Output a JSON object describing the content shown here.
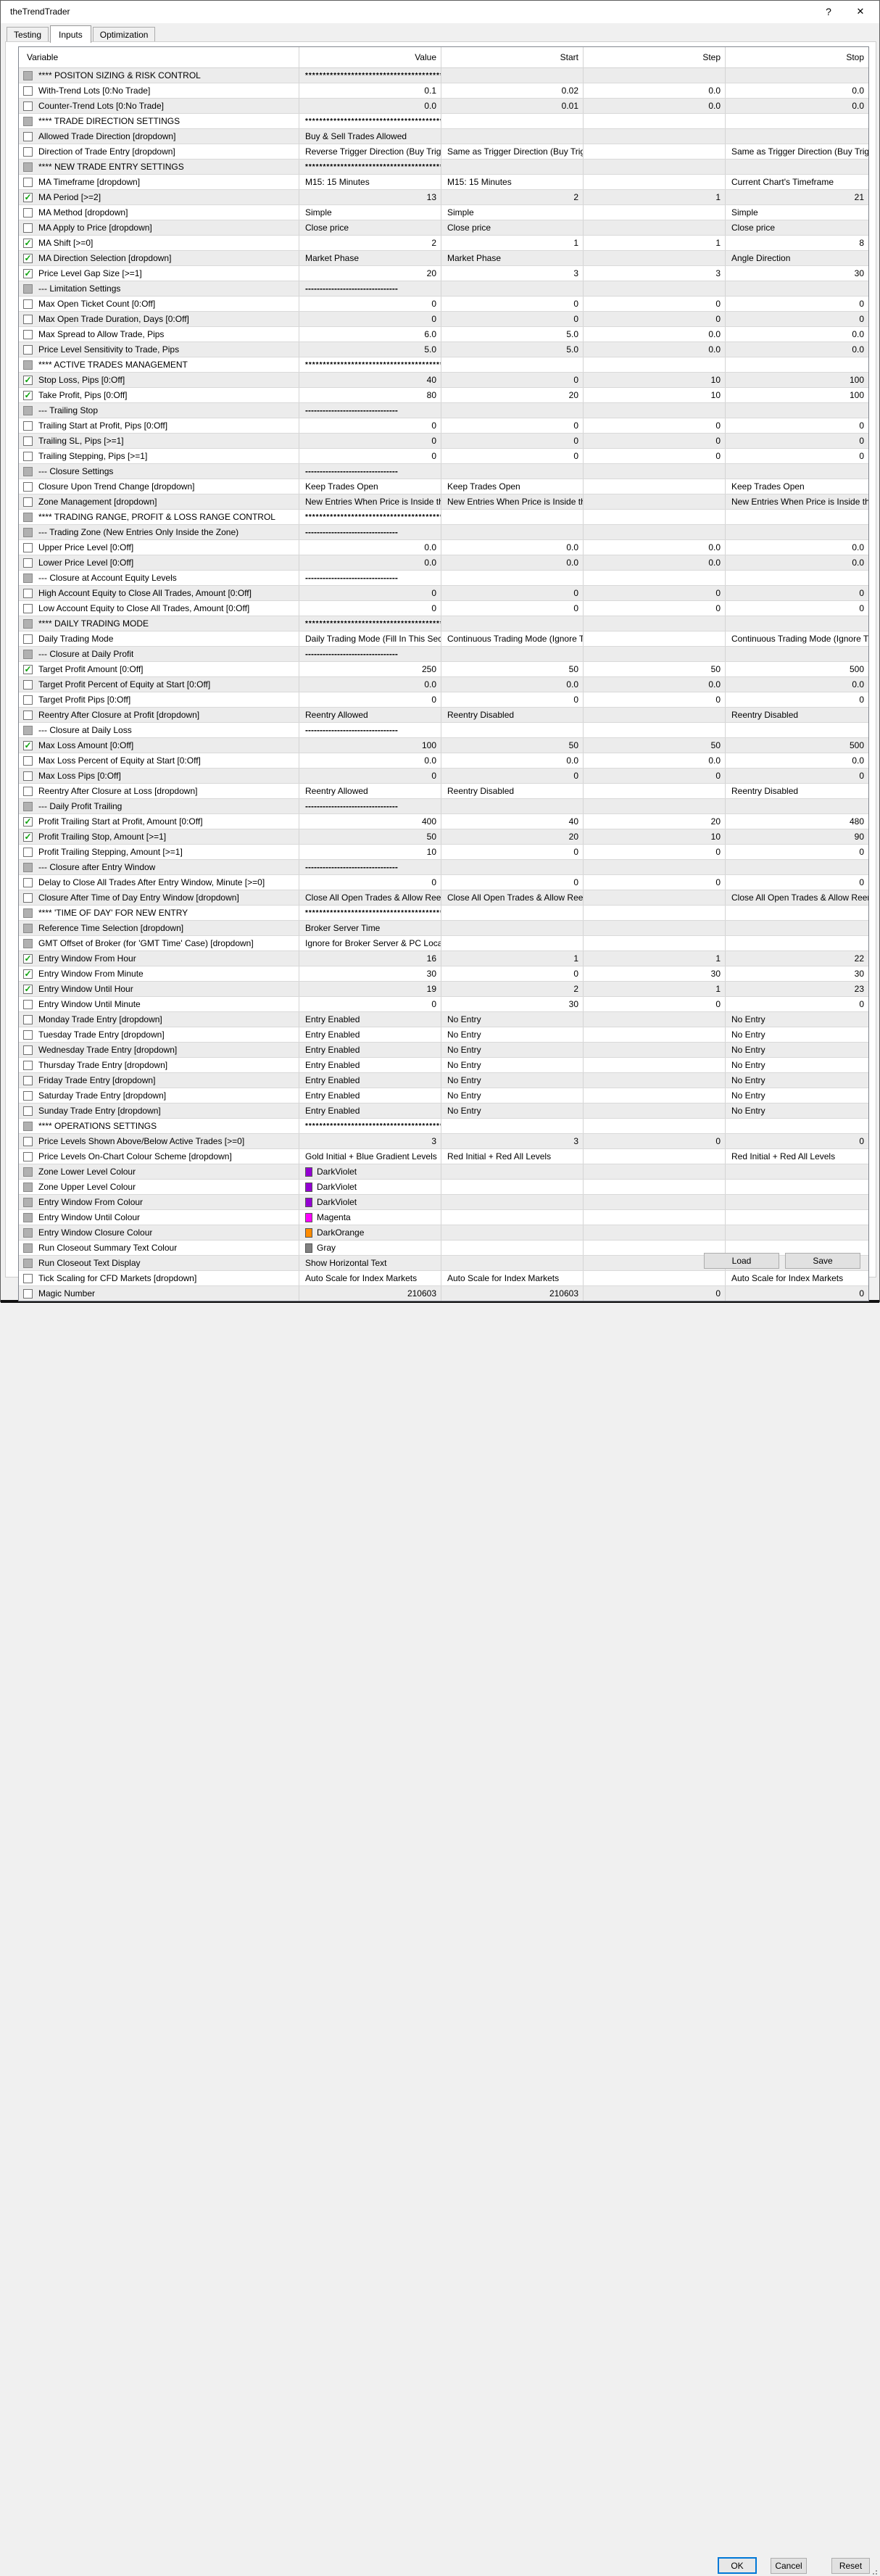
{
  "window": {
    "title": "theTrendTrader",
    "help_glyph": "?",
    "close_glyph": "✕"
  },
  "tabs": [
    {
      "label": "Testing",
      "active": false
    },
    {
      "label": "Inputs",
      "active": true
    },
    {
      "label": "Optimization",
      "active": false
    }
  ],
  "table": {
    "columns": [
      "Variable",
      "Value",
      "Start",
      "Step",
      "Stop"
    ],
    "rows": [
      {
        "label": "**** POSITON SIZING & RISK CONTROL",
        "check": "na",
        "kind": "section",
        "value": "*****************************************",
        "start": "",
        "step": "",
        "stop": ""
      },
      {
        "label": "With-Trend Lots [0:No Trade]",
        "check": "off",
        "kind": "num",
        "value": "0.1",
        "start": "0.02",
        "step": "0.0",
        "stop": "0.0"
      },
      {
        "label": "Counter-Trend Lots [0:No Trade]",
        "check": "off",
        "kind": "num",
        "value": "0.0",
        "start": "0.01",
        "step": "0.0",
        "stop": "0.0"
      },
      {
        "label": "**** TRADE DIRECTION SETTINGS",
        "check": "na",
        "kind": "section",
        "value": "*****************************************",
        "start": "",
        "step": "",
        "stop": ""
      },
      {
        "label": "Allowed Trade Direction [dropdown]",
        "check": "off",
        "kind": "text",
        "value": "Buy & Sell Trades Allowed",
        "start": "",
        "step": "",
        "stop": ""
      },
      {
        "label": "Direction of Trade Entry [dropdown]",
        "check": "off",
        "kind": "text",
        "value": "Reverse Trigger Direction (Buy Trigge...",
        "start": "Same as Trigger Direction (Buy Trigg...",
        "step": "",
        "stop": "Same as Trigger Direction (Buy Trigger..."
      },
      {
        "label": "**** NEW TRADE ENTRY SETTINGS",
        "check": "na",
        "kind": "section",
        "value": "*****************************************",
        "start": "",
        "step": "",
        "stop": ""
      },
      {
        "label": "MA Timeframe [dropdown]",
        "check": "off",
        "kind": "text",
        "value": "M15: 15 Minutes",
        "start": "M15: 15 Minutes",
        "step": "",
        "stop": "Current Chart's Timeframe"
      },
      {
        "label": "MA Period [>=2]",
        "check": "on",
        "kind": "num",
        "value": "13",
        "start": "2",
        "step": "1",
        "stop": "21"
      },
      {
        "label": "MA Method [dropdown]",
        "check": "off",
        "kind": "text",
        "value": "Simple",
        "start": "Simple",
        "step": "",
        "stop": "Simple"
      },
      {
        "label": "MA Apply to Price [dropdown]",
        "check": "off",
        "kind": "text",
        "value": "Close price",
        "start": "Close price",
        "step": "",
        "stop": "Close price"
      },
      {
        "label": "MA Shift [>=0]",
        "check": "on",
        "kind": "num",
        "value": "2",
        "start": "1",
        "step": "1",
        "stop": "8"
      },
      {
        "label": "MA Direction Selection [dropdown]",
        "check": "on",
        "kind": "text",
        "value": "Market Phase",
        "start": "Market Phase",
        "step": "",
        "stop": "Angle Direction"
      },
      {
        "label": "Price Level Gap Size [>=1]",
        "check": "on",
        "kind": "num",
        "value": "20",
        "start": "3",
        "step": "3",
        "stop": "30"
      },
      {
        "label": "--- Limitation Settings",
        "check": "na",
        "kind": "dash",
        "value": "--------------------------------",
        "start": "",
        "step": "",
        "stop": ""
      },
      {
        "label": "Max Open Ticket Count [0:Off]",
        "check": "off",
        "kind": "num",
        "value": "0",
        "start": "0",
        "step": "0",
        "stop": "0"
      },
      {
        "label": "Max Open Trade Duration, Days [0:Off]",
        "check": "off",
        "kind": "num",
        "value": "0",
        "start": "0",
        "step": "0",
        "stop": "0"
      },
      {
        "label": "Max Spread to Allow Trade, Pips",
        "check": "off",
        "kind": "num",
        "value": "6.0",
        "start": "5.0",
        "step": "0.0",
        "stop": "0.0"
      },
      {
        "label": "Price Level Sensitivity to Trade, Pips",
        "check": "off",
        "kind": "num",
        "value": "5.0",
        "start": "5.0",
        "step": "0.0",
        "stop": "0.0"
      },
      {
        "label": "**** ACTIVE TRADES MANAGEMENT",
        "check": "na",
        "kind": "section",
        "value": "*****************************************",
        "start": "",
        "step": "",
        "stop": ""
      },
      {
        "label": "Stop Loss, Pips [0:Off]",
        "check": "on",
        "kind": "num",
        "value": "40",
        "start": "0",
        "step": "10",
        "stop": "100"
      },
      {
        "label": "Take Profit, Pips [0:Off]",
        "check": "on",
        "kind": "num",
        "value": "80",
        "start": "20",
        "step": "10",
        "stop": "100"
      },
      {
        "label": "--- Trailing Stop",
        "check": "na",
        "kind": "dash",
        "value": "--------------------------------",
        "start": "",
        "step": "",
        "stop": ""
      },
      {
        "label": "Trailing Start at Profit, Pips [0:Off]",
        "check": "off",
        "kind": "num",
        "value": "0",
        "start": "0",
        "step": "0",
        "stop": "0"
      },
      {
        "label": "Trailing SL, Pips [>=1]",
        "check": "off",
        "kind": "num",
        "value": "0",
        "start": "0",
        "step": "0",
        "stop": "0"
      },
      {
        "label": "Trailing Stepping, Pips [>=1]",
        "check": "off",
        "kind": "num",
        "value": "0",
        "start": "0",
        "step": "0",
        "stop": "0"
      },
      {
        "label": "--- Closure Settings",
        "check": "na",
        "kind": "dash",
        "value": "--------------------------------",
        "start": "",
        "step": "",
        "stop": ""
      },
      {
        "label": "Closure Upon Trend Change [dropdown]",
        "check": "off",
        "kind": "text",
        "value": "Keep Trades Open",
        "start": "Keep Trades Open",
        "step": "",
        "stop": "Keep Trades Open"
      },
      {
        "label": "Zone Management [dropdown]",
        "check": "off",
        "kind": "text",
        "value": "New Entries When Price is Inside the ...",
        "start": "New Entries When Price is Inside the ...",
        "step": "",
        "stop": "New Entries When Price is Inside the ..."
      },
      {
        "label": "**** TRADING RANGE, PROFIT & LOSS RANGE CONTROL",
        "check": "na",
        "kind": "section",
        "value": "*****************************************",
        "start": "",
        "step": "",
        "stop": ""
      },
      {
        "label": "--- Trading Zone (New Entries Only Inside the Zone)",
        "check": "na",
        "kind": "dash",
        "value": "--------------------------------",
        "start": "",
        "step": "",
        "stop": ""
      },
      {
        "label": "Upper Price Level [0:Off]",
        "check": "off",
        "kind": "num",
        "value": "0.0",
        "start": "0.0",
        "step": "0.0",
        "stop": "0.0"
      },
      {
        "label": "Lower Price Level [0:Off]",
        "check": "off",
        "kind": "num",
        "value": "0.0",
        "start": "0.0",
        "step": "0.0",
        "stop": "0.0"
      },
      {
        "label": "--- Closure at Account Equity Levels",
        "check": "na",
        "kind": "dash",
        "value": "--------------------------------",
        "start": "",
        "step": "",
        "stop": ""
      },
      {
        "label": "High Account Equity to Close All Trades, Amount [0:Off]",
        "check": "off",
        "kind": "num",
        "value": "0",
        "start": "0",
        "step": "0",
        "stop": "0"
      },
      {
        "label": "Low Account Equity to Close All Trades, Amount [0:Off]",
        "check": "off",
        "kind": "num",
        "value": "0",
        "start": "0",
        "step": "0",
        "stop": "0"
      },
      {
        "label": "**** DAILY TRADING MODE",
        "check": "na",
        "kind": "section",
        "value": "*****************************************",
        "start": "",
        "step": "",
        "stop": ""
      },
      {
        "label": "Daily Trading Mode",
        "check": "off",
        "kind": "text",
        "value": "Daily Trading Mode (Fill In This Sectio...",
        "start": "Continuous Trading Mode (Ignore Thi...",
        "step": "",
        "stop": "Continuous Trading Mode (Ignore This..."
      },
      {
        "label": "--- Closure at Daily Profit",
        "check": "na",
        "kind": "dash",
        "value": "--------------------------------",
        "start": "",
        "step": "",
        "stop": ""
      },
      {
        "label": "Target Profit Amount [0:Off]",
        "check": "on",
        "kind": "num",
        "value": "250",
        "start": "50",
        "step": "50",
        "stop": "500"
      },
      {
        "label": "Target Profit Percent of Equity at Start [0:Off]",
        "check": "off",
        "kind": "num",
        "value": "0.0",
        "start": "0.0",
        "step": "0.0",
        "stop": "0.0"
      },
      {
        "label": "Target Profit Pips [0:Off]",
        "check": "off",
        "kind": "num",
        "value": "0",
        "start": "0",
        "step": "0",
        "stop": "0"
      },
      {
        "label": "Reentry After Closure at Profit [dropdown]",
        "check": "off",
        "kind": "text",
        "value": "Reentry Allowed",
        "start": "Reentry Disabled",
        "step": "",
        "stop": "Reentry Disabled"
      },
      {
        "label": "--- Closure at Daily Loss",
        "check": "na",
        "kind": "dash",
        "value": "--------------------------------",
        "start": "",
        "step": "",
        "stop": ""
      },
      {
        "label": "Max Loss Amount [0:Off]",
        "check": "on",
        "kind": "num",
        "value": "100",
        "start": "50",
        "step": "50",
        "stop": "500"
      },
      {
        "label": "Max Loss Percent of Equity at Start [0:Off]",
        "check": "off",
        "kind": "num",
        "value": "0.0",
        "start": "0.0",
        "step": "0.0",
        "stop": "0.0"
      },
      {
        "label": "Max Loss Pips [0:Off]",
        "check": "off",
        "kind": "num",
        "value": "0",
        "start": "0",
        "step": "0",
        "stop": "0"
      },
      {
        "label": "Reentry After Closure at Loss [dropdown]",
        "check": "off",
        "kind": "text",
        "value": "Reentry Allowed",
        "start": "Reentry Disabled",
        "step": "",
        "stop": "Reentry Disabled"
      },
      {
        "label": "--- Daily Profit Trailing",
        "check": "na",
        "kind": "dash",
        "value": "--------------------------------",
        "start": "",
        "step": "",
        "stop": ""
      },
      {
        "label": "Profit Trailing Start at Profit, Amount [0:Off]",
        "check": "on",
        "kind": "num",
        "value": "400",
        "start": "40",
        "step": "20",
        "stop": "480"
      },
      {
        "label": "Profit Trailing Stop, Amount [>=1]",
        "check": "on",
        "kind": "num",
        "value": "50",
        "start": "20",
        "step": "10",
        "stop": "90"
      },
      {
        "label": "Profit Trailing Stepping, Amount [>=1]",
        "check": "off",
        "kind": "num",
        "value": "10",
        "start": "0",
        "step": "0",
        "stop": "0"
      },
      {
        "label": "--- Closure after Entry Window",
        "check": "na",
        "kind": "dash",
        "value": "--------------------------------",
        "start": "",
        "step": "",
        "stop": ""
      },
      {
        "label": "Delay to Close All Trades After Entry Window, Minute [>=0]",
        "check": "off",
        "kind": "num",
        "value": "0",
        "start": "0",
        "step": "0",
        "stop": "0"
      },
      {
        "label": "Closure After Time of Day Entry Window [dropdown]",
        "check": "off",
        "kind": "text",
        "value": "Close All Open Trades & Allow Reentry",
        "start": "Close All Open Trades & Allow Reentry",
        "step": "",
        "stop": "Close All Open Trades & Allow Reentry"
      },
      {
        "label": "**** 'TIME OF DAY' FOR NEW ENTRY",
        "check": "na",
        "kind": "section",
        "value": "*****************************************",
        "start": "",
        "step": "",
        "stop": ""
      },
      {
        "label": "Reference Time Selection [dropdown]",
        "check": "na",
        "kind": "text",
        "value": "Broker Server Time",
        "start": "",
        "step": "",
        "stop": ""
      },
      {
        "label": "GMT Offset of Broker (for 'GMT Time' Case) [dropdown]",
        "check": "na",
        "kind": "text",
        "value": "Ignore for Broker Server & PC Local T...",
        "start": "",
        "step": "",
        "stop": ""
      },
      {
        "label": "Entry Window From Hour",
        "check": "on",
        "kind": "num",
        "value": "16",
        "start": "1",
        "step": "1",
        "stop": "22"
      },
      {
        "label": "Entry Window From Minute",
        "check": "on",
        "kind": "num",
        "value": "30",
        "start": "0",
        "step": "30",
        "stop": "30"
      },
      {
        "label": "Entry Window Until Hour",
        "check": "on",
        "kind": "num",
        "value": "19",
        "start": "2",
        "step": "1",
        "stop": "23"
      },
      {
        "label": "Entry Window Until Minute",
        "check": "off",
        "kind": "num",
        "value": "0",
        "start": "30",
        "step": "0",
        "stop": "0"
      },
      {
        "label": "Monday Trade Entry [dropdown]",
        "check": "off",
        "kind": "text",
        "value": "Entry Enabled",
        "start": "No Entry",
        "step": "",
        "stop": "No Entry"
      },
      {
        "label": "Tuesday Trade Entry [dropdown]",
        "check": "off",
        "kind": "text",
        "value": "Entry Enabled",
        "start": "No Entry",
        "step": "",
        "stop": "No Entry"
      },
      {
        "label": "Wednesday Trade Entry [dropdown]",
        "check": "off",
        "kind": "text",
        "value": "Entry Enabled",
        "start": "No Entry",
        "step": "",
        "stop": "No Entry"
      },
      {
        "label": "Thursday Trade Entry [dropdown]",
        "check": "off",
        "kind": "text",
        "value": "Entry Enabled",
        "start": "No Entry",
        "step": "",
        "stop": "No Entry"
      },
      {
        "label": "Friday Trade Entry [dropdown]",
        "check": "off",
        "kind": "text",
        "value": "Entry Enabled",
        "start": "No Entry",
        "step": "",
        "stop": "No Entry"
      },
      {
        "label": "Saturday Trade Entry [dropdown]",
        "check": "off",
        "kind": "text",
        "value": "Entry Enabled",
        "start": "No Entry",
        "step": "",
        "stop": "No Entry"
      },
      {
        "label": "Sunday Trade Entry [dropdown]",
        "check": "off",
        "kind": "text",
        "value": "Entry Enabled",
        "start": "No Entry",
        "step": "",
        "stop": "No Entry"
      },
      {
        "label": "**** OPERATIONS SETTINGS",
        "check": "na",
        "kind": "section",
        "value": "*****************************************",
        "start": "",
        "step": "",
        "stop": ""
      },
      {
        "label": "Price Levels Shown Above/Below Active Trades [>=0]",
        "check": "off",
        "kind": "num",
        "value": "3",
        "start": "3",
        "step": "0",
        "stop": "0"
      },
      {
        "label": "Price Levels On-Chart Colour Scheme [dropdown]",
        "check": "off",
        "kind": "text",
        "value": "Gold Initial + Blue Gradient Levels",
        "start": "Red Initial + Red All Levels",
        "step": "",
        "stop": "Red Initial + Red All Levels"
      },
      {
        "label": "Zone Lower Level Colour",
        "check": "na",
        "kind": "color",
        "swatch": "#9400D3",
        "value": "DarkViolet",
        "start": "",
        "step": "",
        "stop": ""
      },
      {
        "label": "Zone Upper Level Colour",
        "check": "na",
        "kind": "color",
        "swatch": "#9400D3",
        "value": "DarkViolet",
        "start": "",
        "step": "",
        "stop": ""
      },
      {
        "label": "Entry Window From Colour",
        "check": "na",
        "kind": "color",
        "swatch": "#9400D3",
        "value": "DarkViolet",
        "start": "",
        "step": "",
        "stop": ""
      },
      {
        "label": "Entry Window Until Colour",
        "check": "na",
        "kind": "color",
        "swatch": "#FF00FF",
        "value": "Magenta",
        "start": "",
        "step": "",
        "stop": ""
      },
      {
        "label": "Entry Window Closure Colour",
        "check": "na",
        "kind": "color",
        "swatch": "#FF8C00",
        "value": "DarkOrange",
        "start": "",
        "step": "",
        "stop": ""
      },
      {
        "label": "Run Closeout Summary Text Colour",
        "check": "na",
        "kind": "color",
        "swatch": "#808080",
        "value": "Gray",
        "start": "",
        "step": "",
        "stop": ""
      },
      {
        "label": "Run Closeout Text Display",
        "check": "na",
        "kind": "text",
        "value": "Show Horizontal Text",
        "start": "",
        "step": "",
        "stop": ""
      },
      {
        "label": "Tick Scaling for CFD Markets [dropdown]",
        "check": "off",
        "kind": "text",
        "value": "Auto Scale for Index Markets",
        "start": "Auto Scale for Index Markets",
        "step": "",
        "stop": "Auto Scale for Index Markets"
      },
      {
        "label": "Magic Number",
        "check": "off",
        "kind": "num",
        "value": "210603",
        "start": "210603",
        "step": "0",
        "stop": "0"
      }
    ]
  },
  "buttons": {
    "load": "Load",
    "save": "Save",
    "ok": "OK",
    "cancel": "Cancel",
    "reset": "Reset"
  },
  "colors": {
    "focus_border": "#0078d7",
    "check_green": "#0ca30c",
    "row_stripe": "#ececec"
  }
}
